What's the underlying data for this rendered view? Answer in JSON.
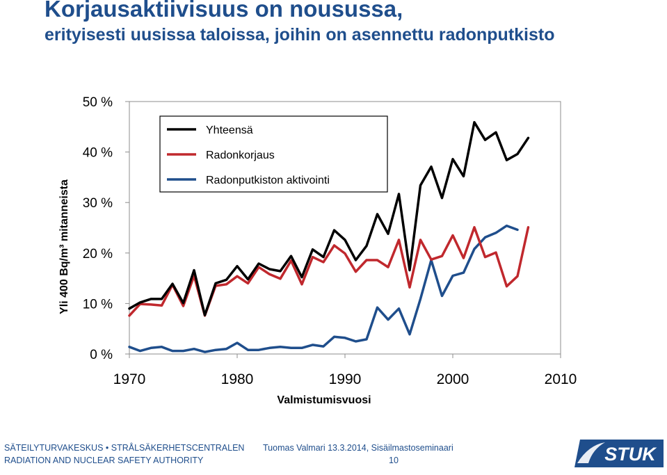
{
  "header": {
    "title": "Korjausaktiivisuus on nousussa,",
    "subtitle": "erityisesti uusissa taloissa, joihin on asennettu radonputkisto"
  },
  "footer": {
    "org_line1": "SÄTEILYTURVAKESKUS • STRÅLSÄKERHETSCENTRALEN",
    "org_line2": "RADIATION AND NUCLEAR SAFETY AUTHORITY",
    "presenter": "Tuomas Valmari 13.3.2014, Sisäilmastoseminaari",
    "page": "10",
    "logo_text": "STUK"
  },
  "chart_data": {
    "type": "line",
    "xlabel": "Valmistumisvuosi",
    "ylabel": "Yli 400 Bq/m³ mitanneista",
    "xlim": [
      1970,
      2010
    ],
    "ylim": [
      0,
      50
    ],
    "xticks": [
      "1970",
      "1980",
      "1990",
      "2000",
      "2010"
    ],
    "yticks": [
      "0 %",
      "10 %",
      "20 %",
      "30 %",
      "40 %",
      "50 %"
    ],
    "legend_position": "top-left",
    "grid": false,
    "series": [
      {
        "name": "Yhteensä",
        "color": "#000000",
        "x": [
          1970,
          1971,
          1972,
          1973,
          1974,
          1975,
          1976,
          1977,
          1978,
          1979,
          1980,
          1981,
          1982,
          1983,
          1984,
          1985,
          1986,
          1987,
          1988,
          1989,
          1990,
          1991,
          1992,
          1993,
          1994,
          1995,
          1996,
          1997,
          1998,
          1999,
          2000,
          2001,
          2002,
          2003,
          2004,
          2005,
          2006,
          2007
        ],
        "y": [
          9.0,
          10.2,
          10.9,
          10.9,
          13.9,
          10.1,
          16.6,
          7.7,
          14.0,
          14.7,
          17.4,
          14.8,
          17.9,
          16.8,
          16.4,
          19.4,
          15.2,
          20.7,
          19.2,
          24.5,
          22.6,
          18.6,
          21.4,
          27.7,
          23.8,
          31.7,
          16.6,
          33.4,
          37.1,
          30.9,
          38.6,
          35.2,
          45.9,
          42.4,
          43.9,
          38.4,
          39.6,
          42.8
        ]
      },
      {
        "name": "Radonkorjaus",
        "color": "#c0282d",
        "x": [
          1970,
          1971,
          1972,
          1973,
          1974,
          1975,
          1976,
          1977,
          1978,
          1979,
          1980,
          1981,
          1982,
          1983,
          1984,
          1985,
          1986,
          1987,
          1988,
          1989,
          1990,
          1991,
          1992,
          1993,
          1994,
          1995,
          1996,
          1997,
          1998,
          1999,
          2000,
          2001,
          2002,
          2003,
          2004,
          2005,
          2006,
          2007
        ],
        "y": [
          7.6,
          9.9,
          9.8,
          9.6,
          13.7,
          9.5,
          15.5,
          7.6,
          13.5,
          13.8,
          15.4,
          14.0,
          17.2,
          15.8,
          14.9,
          18.5,
          13.8,
          19.2,
          18.2,
          21.5,
          19.9,
          16.3,
          18.6,
          18.6,
          17.2,
          22.6,
          13.2,
          22.6,
          18.7,
          19.4,
          23.5,
          19.0,
          25.1,
          19.2,
          20.1,
          13.4,
          15.4,
          25.1
        ]
      },
      {
        "name": "Radonputkiston aktivointi",
        "color": "#1f4e8c",
        "x": [
          1970,
          1971,
          1972,
          1973,
          1974,
          1975,
          1976,
          1977,
          1978,
          1979,
          1980,
          1981,
          1982,
          1983,
          1984,
          1985,
          1986,
          1987,
          1988,
          1989,
          1990,
          1991,
          1992,
          1993,
          1994,
          1995,
          1996,
          1997,
          1998,
          1999,
          2000,
          2001,
          2002,
          2003,
          2004,
          2005,
          2006
        ],
        "y": [
          1.4,
          0.6,
          1.2,
          1.4,
          0.6,
          0.6,
          1.0,
          0.4,
          0.8,
          1.0,
          2.2,
          0.8,
          0.8,
          1.2,
          1.4,
          1.2,
          1.2,
          1.8,
          1.5,
          3.4,
          3.2,
          2.5,
          2.9,
          9.2,
          6.8,
          9.0,
          3.9,
          10.9,
          18.6,
          11.5,
          15.5,
          16.1,
          20.8,
          23.1,
          24.0,
          25.4,
          24.6
        ]
      }
    ]
  }
}
